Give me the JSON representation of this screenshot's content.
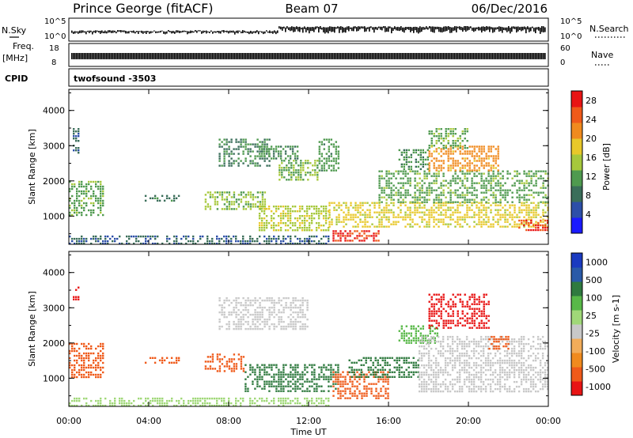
{
  "header": {
    "station": "Prince George (fitACF)",
    "beam": "Beam 07",
    "date": "06/Dec/2016"
  },
  "top_panels": {
    "nsky_label": "N.Sky",
    "nsearch_label": "N.Search",
    "nsky_ticks": [
      "10^5",
      "10^0"
    ],
    "nsearch_ticks": [
      "10^5",
      "10^0"
    ],
    "freq_label_1": "Freq.",
    "freq_label_2": "[MHz]",
    "freq_ticks": [
      "18",
      "8"
    ],
    "nave_label": "Nave",
    "nave_ticks": [
      "60",
      "0"
    ],
    "cpid_label": "CPID",
    "cpid_value": "twofsound -3503"
  },
  "colors": {
    "power_scale": [
      "#1a1aff",
      "#2d4fa8",
      "#3a6e5a",
      "#4f9a4f",
      "#a6c83c",
      "#e8c82a",
      "#f08a1e",
      "#ef5a1a",
      "#e81414"
    ],
    "velocity_scale": [
      "#e81414",
      "#ef5a1a",
      "#f08a1e",
      "#f2ac5a",
      "#c8c8c8",
      "#a0d878",
      "#58b848",
      "#2f7a3f",
      "#2a5aa8",
      "#1a3ac0"
    ]
  },
  "chart_data": [
    {
      "type": "heatmap",
      "title": "",
      "xlabel": "Time UT",
      "ylabel": "Slant Range [km]",
      "x_ticks": [
        "00:00",
        "04:00",
        "08:00",
        "12:00",
        "16:00",
        "20:00",
        "00:00"
      ],
      "y_ticks": [
        "1000",
        "2000",
        "3000",
        "4000"
      ],
      "xlim_hours": [
        0,
        24
      ],
      "ylim_km": [
        200,
        4600
      ],
      "colorbar": {
        "label": "Power [dB]",
        "ticks": [
          "4",
          "8",
          "12",
          "16",
          "20",
          "24",
          "28"
        ],
        "range": [
          0,
          30
        ]
      },
      "regions": [
        {
          "t0": 0.0,
          "t1": 1.7,
          "r0": 1000,
          "r1": 2000,
          "value": 12
        },
        {
          "t0": 0.2,
          "t1": 0.5,
          "r0": 2800,
          "r1": 3500,
          "value": 6
        },
        {
          "t0": 3.8,
          "t1": 5.5,
          "r0": 1400,
          "r1": 1600,
          "value": 8
        },
        {
          "t0": 6.8,
          "t1": 9.8,
          "r0": 1200,
          "r1": 1700,
          "value": 14
        },
        {
          "t0": 7.5,
          "t1": 10.0,
          "r0": 2400,
          "r1": 3200,
          "value": 9
        },
        {
          "t0": 9.5,
          "t1": 11.5,
          "r0": 2600,
          "r1": 3000,
          "value": 10
        },
        {
          "t0": 10.5,
          "t1": 12.5,
          "r0": 2000,
          "r1": 2600,
          "value": 13
        },
        {
          "t0": 12.5,
          "t1": 13.5,
          "r0": 2300,
          "r1": 3200,
          "value": 11
        },
        {
          "t0": 9.5,
          "t1": 13.0,
          "r0": 600,
          "r1": 1300,
          "value": 16
        },
        {
          "t0": 0.0,
          "t1": 13.0,
          "r0": 200,
          "r1": 450,
          "value": 6
        },
        {
          "t0": 13.2,
          "t1": 15.5,
          "r0": 300,
          "r1": 600,
          "value": 29
        },
        {
          "t0": 13.0,
          "t1": 24.0,
          "r0": 700,
          "r1": 1400,
          "value": 18
        },
        {
          "t0": 15.5,
          "t1": 24.0,
          "r0": 1400,
          "r1": 2300,
          "value": 12
        },
        {
          "t0": 16.5,
          "t1": 18.0,
          "r0": 2300,
          "r1": 2900,
          "value": 10
        },
        {
          "t0": 18.0,
          "t1": 21.5,
          "r0": 2300,
          "r1": 3000,
          "value": 22
        },
        {
          "t0": 18.0,
          "t1": 20.0,
          "r0": 2900,
          "r1": 3500,
          "value": 12
        },
        {
          "t0": 22.5,
          "t1": 24.0,
          "r0": 600,
          "r1": 900,
          "value": 28
        }
      ]
    },
    {
      "type": "heatmap",
      "title": "",
      "xlabel": "Time UT",
      "ylabel": "Slant Range [km]",
      "x_ticks": [
        "00:00",
        "04:00",
        "08:00",
        "12:00",
        "16:00",
        "20:00",
        "00:00"
      ],
      "y_ticks": [
        "1000",
        "2000",
        "3000",
        "4000"
      ],
      "xlim_hours": [
        0,
        24
      ],
      "ylim_km": [
        200,
        4600
      ],
      "colorbar": {
        "label": "Velocity [m s-1]",
        "ticks": [
          "1000",
          "500",
          "100",
          "25",
          "-25",
          "-100",
          "-500",
          "-1000"
        ],
        "range": [
          -1000,
          1000
        ]
      },
      "regions": [
        {
          "t0": 0.0,
          "t1": 1.7,
          "r0": 1000,
          "r1": 2000,
          "value": -120
        },
        {
          "t0": 0.2,
          "t1": 0.5,
          "r0": 3200,
          "r1": 3600,
          "value": -600
        },
        {
          "t0": 3.8,
          "t1": 5.5,
          "r0": 1400,
          "r1": 1600,
          "value": -120
        },
        {
          "t0": 6.8,
          "t1": 8.8,
          "r0": 1200,
          "r1": 1700,
          "value": -150
        },
        {
          "t0": 7.5,
          "t1": 12.0,
          "r0": 2400,
          "r1": 3300,
          "value": 0
        },
        {
          "t0": 8.8,
          "t1": 13.5,
          "r0": 600,
          "r1": 1400,
          "value": 150
        },
        {
          "t0": 0.0,
          "t1": 13.0,
          "r0": 200,
          "r1": 450,
          "value": 30
        },
        {
          "t0": 13.2,
          "t1": 16.0,
          "r0": 400,
          "r1": 1200,
          "value": -100
        },
        {
          "t0": 14.0,
          "t1": 17.5,
          "r0": 1000,
          "r1": 1600,
          "value": 120
        },
        {
          "t0": 16.5,
          "t1": 18.5,
          "r0": 2000,
          "r1": 2500,
          "value": 80
        },
        {
          "t0": 17.5,
          "t1": 24.0,
          "r0": 600,
          "r1": 2200,
          "value": 0
        },
        {
          "t0": 18.0,
          "t1": 21.0,
          "r0": 2400,
          "r1": 3400,
          "value": -600
        },
        {
          "t0": 21.0,
          "t1": 22.0,
          "r0": 1800,
          "r1": 2200,
          "value": -120
        }
      ]
    }
  ]
}
